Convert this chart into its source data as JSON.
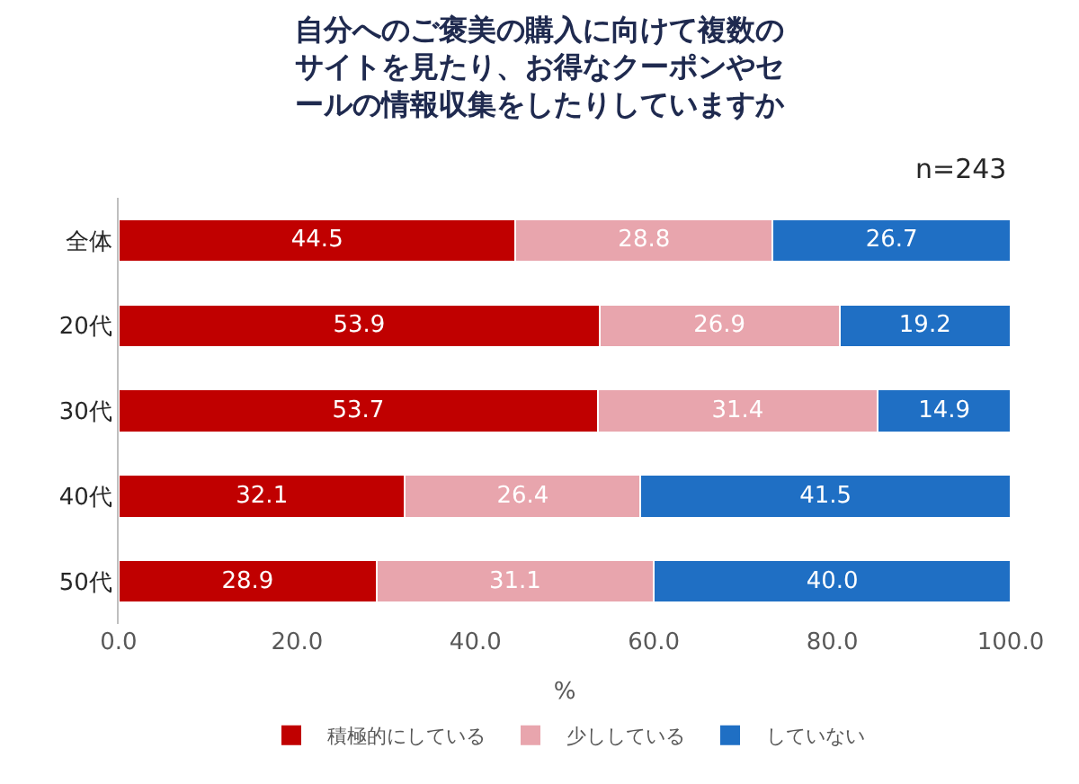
{
  "chart_data": {
    "type": "bar",
    "orientation": "horizontal",
    "stacked": true,
    "title": "自分へのご褒美の購入に向けて複数のサイトを見たり、お得なクーポンやセールの情報収集をしたりしていますか",
    "xlabel": "%",
    "annotations": [
      "n=243"
    ],
    "categories": [
      "全体",
      "20代",
      "30代",
      "40代",
      "50代"
    ],
    "series": [
      {
        "name": "積極的にしている",
        "color": "#c00000",
        "values": [
          44.5,
          53.9,
          53.7,
          32.1,
          28.9
        ],
        "value_labels": [
          "44.5",
          "53.9",
          "53.7",
          "32.1",
          "28.9"
        ]
      },
      {
        "name": "少ししている",
        "color": "#e8a5ad",
        "values": [
          28.8,
          26.9,
          31.4,
          26.4,
          31.1
        ],
        "value_labels": [
          "28.8",
          "26.9",
          "31.4",
          "26.4",
          "31.1"
        ]
      },
      {
        "name": "していない",
        "color": "#1f6fc4",
        "values": [
          26.7,
          19.2,
          14.9,
          41.5,
          40.0
        ],
        "value_labels": [
          "26.7",
          "19.2",
          "14.9",
          "41.5",
          "40.0"
        ]
      }
    ],
    "xlim": [
      0,
      100
    ],
    "xticks": [
      {
        "value": 0,
        "label": "0.0"
      },
      {
        "value": 20,
        "label": "20.0"
      },
      {
        "value": 40,
        "label": "40.0"
      },
      {
        "value": 60,
        "label": "60.0"
      },
      {
        "value": 80,
        "label": "80.0"
      },
      {
        "value": 100,
        "label": "100.0"
      }
    ],
    "legend": "bottom"
  }
}
